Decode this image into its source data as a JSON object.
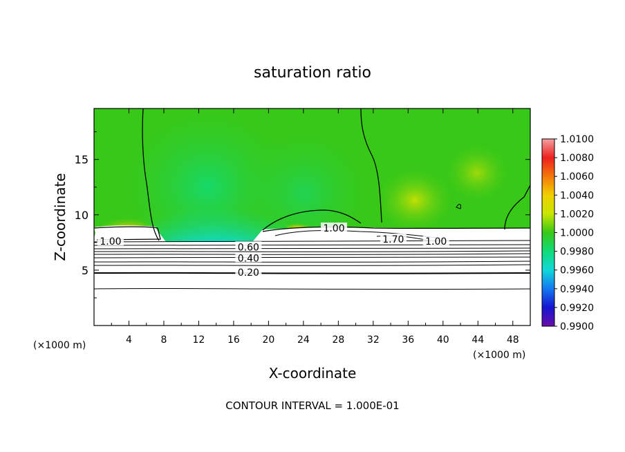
{
  "chart_data": {
    "type": "heatmap",
    "title": "saturation ratio",
    "xlabel": "X-coordinate",
    "ylabel": "Z-coordinate",
    "x_unit": "(×1000 m)",
    "x_unit_right": "(×1000 m)",
    "x_ticks": [
      4,
      8,
      12,
      16,
      20,
      24,
      28,
      32,
      36,
      40,
      44,
      48
    ],
    "y_ticks": [
      5,
      10,
      15
    ],
    "xlim": [
      0,
      50
    ],
    "ylim": [
      0,
      19.6
    ],
    "footer": "CONTOUR INTERVAL = 1.000E-01",
    "colorbar": {
      "labels": [
        "1.0100",
        "1.0080",
        "1.0060",
        "1.0040",
        "1.0020",
        "1.0000",
        "0.9980",
        "0.9960",
        "0.9940",
        "0.9920",
        "0.9900"
      ],
      "colors": [
        "#f4a0a0",
        "#ee2020",
        "#f5780a",
        "#f0d000",
        "#c8e600",
        "#38c818",
        "#10dc78",
        "#10d8d8",
        "#1478f0",
        "#1414d0",
        "#6a10a8"
      ]
    },
    "contour_labels": [
      {
        "text": "1.00",
        "x": 1.9,
        "z": 7.6
      },
      {
        "text": "1.00",
        "x": 27.5,
        "z": 8.8
      },
      {
        "text": "1.70",
        "x": 34.3,
        "z": 7.8
      },
      {
        "text": "1.00",
        "x": 39.2,
        "z": 7.6
      },
      {
        "text": "0.60",
        "x": 17.7,
        "z": 7.1
      },
      {
        "text": "0.40",
        "x": 17.7,
        "z": 6.1
      },
      {
        "text": "0.20",
        "x": 17.7,
        "z": 4.8
      }
    ]
  }
}
